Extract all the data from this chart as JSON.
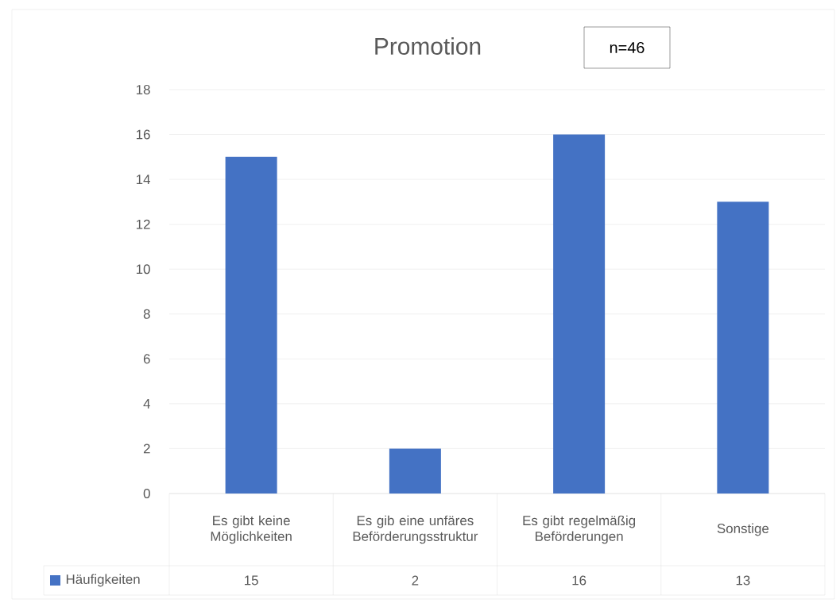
{
  "chart_data": {
    "type": "bar",
    "title": "Promotion",
    "categories": [
      "Es gibt keine Möglichkeiten",
      "Es gib eine unfäres Beförderungsstruktur",
      "Es gibt regelmäßig Beförderungen",
      "Sonstige"
    ],
    "series": [
      {
        "name": "Häufigkeiten",
        "color": "#4472c4",
        "values": [
          15,
          2,
          16,
          13
        ]
      }
    ],
    "ylim": [
      0,
      18
    ],
    "yticks": [
      0,
      2,
      4,
      6,
      8,
      10,
      12,
      14,
      16,
      18
    ],
    "grid": "y",
    "legend": "bottom",
    "data_labels": true,
    "annotations": [
      "n=46"
    ]
  }
}
